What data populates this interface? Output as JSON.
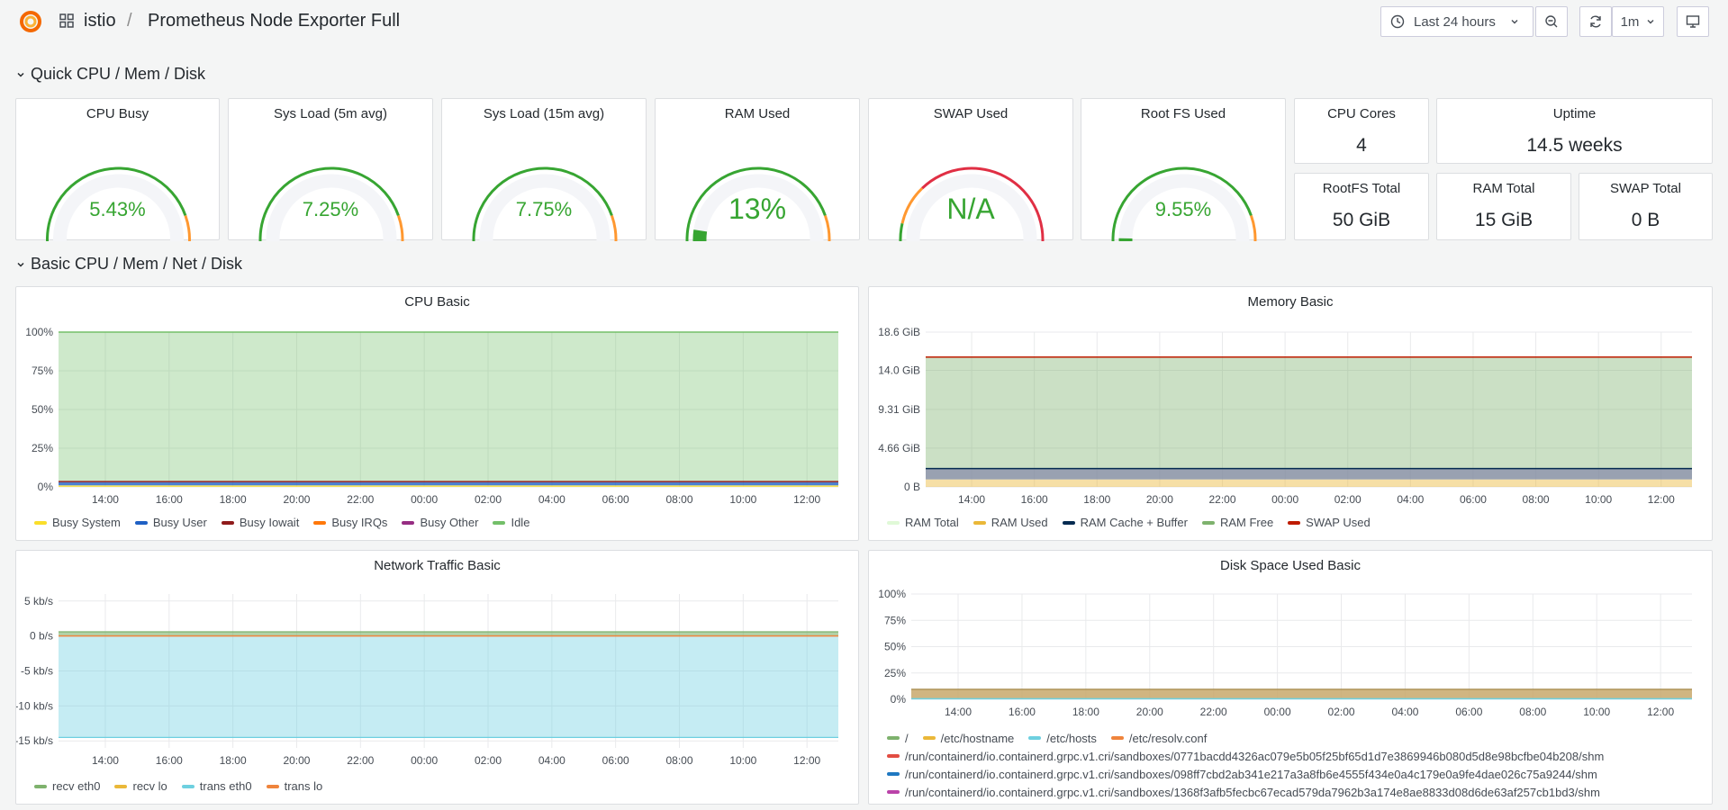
{
  "header": {
    "breadcrumb_folder": "istio",
    "breadcrumb_sep": "/",
    "dashboard_title": "Prometheus Node Exporter Full",
    "time_range": "Last 24 hours",
    "refresh_interval": "1m"
  },
  "rows": {
    "quick": "Quick CPU / Mem / Disk",
    "basic": "Basic CPU / Mem / Net / Disk"
  },
  "gauges": [
    {
      "title": "CPU Busy",
      "value": "5.43%",
      "fraction": 0.0543
    },
    {
      "title": "Sys Load (5m avg)",
      "value": "7.25%",
      "fraction": 0.0725
    },
    {
      "title": "Sys Load (15m avg)",
      "value": "7.75%",
      "fraction": 0.0775
    },
    {
      "title": "RAM Used",
      "value": "13%",
      "fraction": 0.13
    },
    {
      "title": "SWAP Used",
      "value": "N/A",
      "fraction": 0
    },
    {
      "title": "Root FS Used",
      "value": "9.55%",
      "fraction": 0.0955
    }
  ],
  "stats": {
    "cpu_cores": {
      "title": "CPU Cores",
      "value": "4"
    },
    "uptime": {
      "title": "Uptime",
      "value": "14.5 weeks"
    },
    "rootfs_total": {
      "title": "RootFS Total",
      "value": "50 GiB"
    },
    "ram_total": {
      "title": "RAM Total",
      "value": "15 GiB"
    },
    "swap_total": {
      "title": "SWAP Total",
      "value": "0 B"
    }
  },
  "colors": {
    "green": "#37a532",
    "red": "#e02f44",
    "orange": "#ff9830",
    "gauge_bg": "#f4f5f8"
  },
  "chart_data": [
    {
      "type": "area",
      "title": "CPU Basic",
      "x_ticks": [
        "14:00",
        "16:00",
        "18:00",
        "20:00",
        "22:00",
        "00:00",
        "02:00",
        "04:00",
        "06:00",
        "08:00",
        "10:00",
        "12:00"
      ],
      "y_ticks": [
        "100%",
        "75%",
        "50%",
        "25%",
        "0%"
      ],
      "ylim": [
        0,
        100
      ],
      "series": [
        {
          "name": "Busy System",
          "color": "#fade2a",
          "value": 1
        },
        {
          "name": "Busy User",
          "color": "#1f60c4",
          "value": 2
        },
        {
          "name": "Busy Iowait",
          "color": "#8f1b1b",
          "value": 0.5
        },
        {
          "name": "Busy IRQs",
          "color": "#ff780a",
          "value": 0.2
        },
        {
          "name": "Busy Other",
          "color": "#962d82",
          "value": 0.1
        },
        {
          "name": "Idle",
          "color": "#73bf69",
          "value": 96.2
        }
      ]
    },
    {
      "type": "area",
      "title": "Memory Basic",
      "x_ticks": [
        "14:00",
        "16:00",
        "18:00",
        "20:00",
        "22:00",
        "00:00",
        "02:00",
        "04:00",
        "06:00",
        "08:00",
        "10:00",
        "12:00"
      ],
      "y_ticks": [
        "18.6 GiB",
        "14.0 GiB",
        "9.31 GiB",
        "4.66 GiB",
        "0 B"
      ],
      "ylim": [
        0,
        18.6
      ],
      "series": [
        {
          "name": "RAM Total",
          "color": "#e0f9d7",
          "value": 15.6
        },
        {
          "name": "RAM Used",
          "color": "#eab839",
          "value": 0.9
        },
        {
          "name": "RAM Cache + Buffer",
          "color": "#052b51",
          "value": 1.3
        },
        {
          "name": "RAM Free",
          "color": "#7eb26d",
          "value": 13.4
        },
        {
          "name": "SWAP Used",
          "color": "#bf1b00",
          "value": 0
        }
      ]
    },
    {
      "type": "area",
      "title": "Network Traffic Basic",
      "x_ticks": [
        "14:00",
        "16:00",
        "18:00",
        "20:00",
        "22:00",
        "00:00",
        "02:00",
        "04:00",
        "06:00",
        "08:00",
        "10:00",
        "12:00"
      ],
      "y_ticks": [
        "5 kb/s",
        "0 b/s",
        "-5 kb/s",
        "-10 kb/s",
        "-15 kb/s"
      ],
      "ylim": [
        -16,
        6
      ],
      "series": [
        {
          "name": "recv eth0",
          "color": "#7eb26d",
          "value": 0.6
        },
        {
          "name": "recv lo",
          "color": "#eab839",
          "value": 0
        },
        {
          "name": "trans eth0",
          "color": "#6ed0e0",
          "value": -14.5
        },
        {
          "name": "trans lo",
          "color": "#ef843c",
          "value": 0
        }
      ]
    },
    {
      "type": "area",
      "title": "Disk Space Used Basic",
      "x_ticks": [
        "14:00",
        "16:00",
        "18:00",
        "20:00",
        "22:00",
        "00:00",
        "02:00",
        "04:00",
        "06:00",
        "08:00",
        "10:00",
        "12:00"
      ],
      "y_ticks": [
        "100%",
        "75%",
        "50%",
        "25%",
        "0%"
      ],
      "ylim": [
        0,
        100
      ],
      "series": [
        {
          "name": "/",
          "color": "#7eb26d",
          "value": 9.5
        },
        {
          "name": "/etc/hostname",
          "color": "#eab839",
          "value": 9.5
        },
        {
          "name": "/etc/hosts",
          "color": "#6ed0e0",
          "value": 9.5
        },
        {
          "name": "/etc/resolv.conf",
          "color": "#ef843c",
          "value": 9.5
        },
        {
          "name": "/run/containerd/io.containerd.grpc.v1.cri/sandboxes/0771bacdd4326ac079e5b05f25bf65d1d7e3869946b080d5d8e98bcfbe04b208/shm",
          "color": "#e24d42",
          "value": 0
        },
        {
          "name": "/run/containerd/io.containerd.grpc.v1.cri/sandboxes/098ff7cbd2ab341e217a3a8fb6e4555f434e0a4c179e0a9fe4dae026c75a9244/shm",
          "color": "#1f78c1",
          "value": 0
        },
        {
          "name": "/run/containerd/io.containerd.grpc.v1.cri/sandboxes/1368f3afb5fecbc67ecad579da7962b3a174e8ae8833d08d6de63af257cb1bd3/shm",
          "color": "#ba43a9",
          "value": 0
        }
      ]
    }
  ]
}
